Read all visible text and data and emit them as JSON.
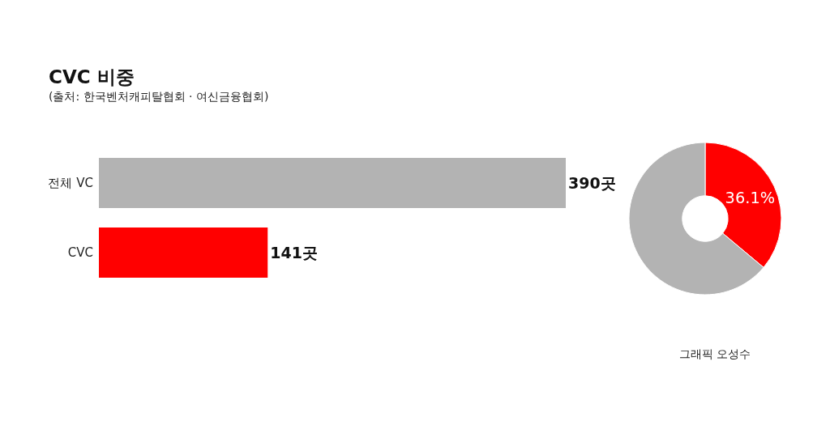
{
  "chart_data": [
    {
      "type": "bar",
      "title": "CVC 비중",
      "subtitle": "(출처: 한국벤처캐피탈협회 · 여신금융협회)",
      "orientation": "horizontal",
      "categories": [
        "전체 VC",
        "CVC"
      ],
      "values": [
        390,
        141
      ],
      "colors": [
        "#b3b3b3",
        "#ff0000"
      ],
      "value_labels": [
        "390곳",
        "141곳"
      ],
      "tick_labels": "y",
      "annotations": [
        "그래픽 오성수"
      ]
    },
    {
      "type": "donut",
      "categories": [
        null,
        null
      ],
      "values": [
        36.1,
        63.9
      ],
      "colors": [
        "#ff0000",
        "#b3b3b3"
      ],
      "value_labels": [
        "36.1%",
        null
      ]
    }
  ]
}
